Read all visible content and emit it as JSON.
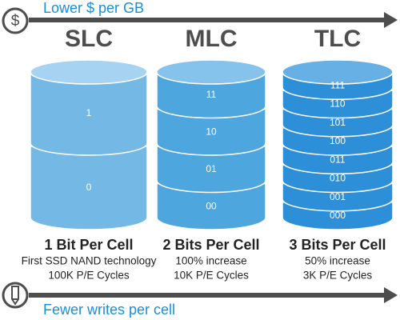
{
  "top_caption": "Lower $ per GB",
  "bottom_caption": "Fewer writes per cell",
  "columns": [
    {
      "title": "SLC",
      "layers": [
        "1",
        "0"
      ],
      "bits": "1 Bit Per Cell",
      "note": "First SSD NAND technology",
      "cycles": "100K P/E Cycles"
    },
    {
      "title": "MLC",
      "layers": [
        "11",
        "10",
        "01",
        "00"
      ],
      "bits": "2 Bits Per Cell",
      "note": "100% increase",
      "cycles": "10K P/E Cycles"
    },
    {
      "title": "TLC",
      "layers": [
        "111",
        "110",
        "101",
        "100",
        "011",
        "010",
        "001",
        "000"
      ],
      "bits": "3 Bits Per Cell",
      "note": "50% increase",
      "cycles": "3K P/E Cycles"
    }
  ]
}
